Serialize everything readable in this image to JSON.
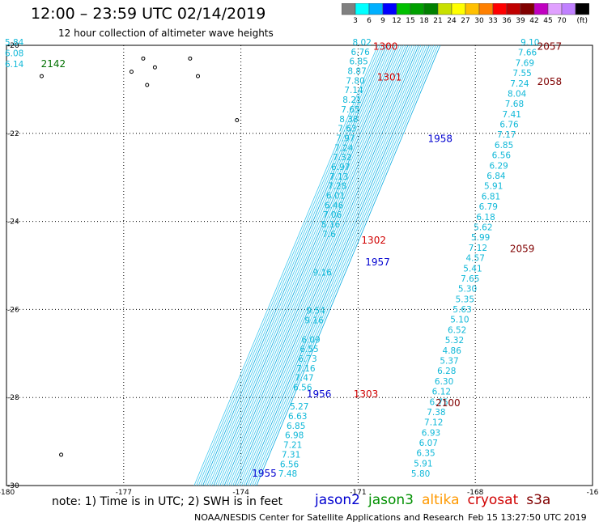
{
  "header": {
    "title": "12:00 – 23:59 UTC 02/14/2019",
    "subtitle": "12 hour collection of altimeter wave heights"
  },
  "color_scale": {
    "unit": "(ft)",
    "colors": [
      "#808080",
      "#00ffff",
      "#00b0ff",
      "#0000ff",
      "#00c000",
      "#00a000",
      "#008000",
      "#c8e000",
      "#ffff00",
      "#ffc000",
      "#ff8000",
      "#ff0000",
      "#c00000",
      "#800000",
      "#c000c0",
      "#e0a0ff",
      "#c080ff",
      "#000000"
    ],
    "labels": [
      "3",
      "6",
      "9",
      "12",
      "15",
      "18",
      "21",
      "24",
      "27",
      "30",
      "33",
      "36",
      "39",
      "42",
      "45",
      "70"
    ]
  },
  "footer": {
    "note": "note: 1) Time is in UTC; 2) SWH is in feet",
    "satellites": [
      {
        "name": "jason2",
        "color": "#0000d0"
      },
      {
        "name": "jason3",
        "color": "#009000"
      },
      {
        "name": "altika",
        "color": "#ff9900"
      },
      {
        "name": "cryosat",
        "color": "#d00000"
      },
      {
        "name": "s3a",
        "color": "#800000"
      }
    ],
    "credit": "NOAA/NESDIS Center for Satellite Applications and Research",
    "timestamp": "Feb 15 13:27:50 UTC 2019"
  },
  "chart_data": {
    "type": "scatter",
    "title": "12:00 – 23:59 UTC 02/14/2019",
    "subtitle": "12 hour collection of altimeter wave heights",
    "x_ticks": [
      "-180",
      "-177",
      "-174",
      "-171",
      "-168",
      "-16"
    ],
    "y_ticks": [
      "-20",
      "-22",
      "-24",
      "-26",
      "-28",
      "-30"
    ],
    "xlim": [
      -180,
      -165
    ],
    "ylim": [
      -30,
      -20
    ],
    "grid": true,
    "time_labels": [
      {
        "text": "1300",
        "lon": -170.3,
        "lat": -20.1,
        "color": "#d00000"
      },
      {
        "text": "1301",
        "lon": -170.2,
        "lat": -20.8,
        "color": "#d00000"
      },
      {
        "text": "1302",
        "lon": -170.6,
        "lat": -24.5,
        "color": "#d00000"
      },
      {
        "text": "1303",
        "lon": -170.8,
        "lat": -28.0,
        "color": "#d00000"
      },
      {
        "text": "2057",
        "lon": -166.1,
        "lat": -20.1,
        "color": "#800000"
      },
      {
        "text": "2058",
        "lon": -166.1,
        "lat": -20.9,
        "color": "#800000"
      },
      {
        "text": "2059",
        "lon": -166.8,
        "lat": -24.7,
        "color": "#800000"
      },
      {
        "text": "2100",
        "lon": -168.7,
        "lat": -28.2,
        "color": "#800000"
      },
      {
        "text": "2142",
        "lon": -178.8,
        "lat": -20.5,
        "color": "#007000"
      },
      {
        "text": "1958",
        "lon": -168.9,
        "lat": -22.2,
        "color": "#0000d0"
      },
      {
        "text": "1957",
        "lon": -170.5,
        "lat": -25.0,
        "color": "#0000d0"
      },
      {
        "text": "1956",
        "lon": -172.0,
        "lat": -28.0,
        "color": "#0000d0"
      },
      {
        "text": "1955",
        "lon": -173.4,
        "lat": -29.8,
        "color": "#0000d0"
      }
    ],
    "tracks": [
      {
        "name": "cryosat",
        "start": {
          "lon": -170.9,
          "lat": -20.0
        },
        "end": {
          "lon": -172.8,
          "lat": -29.8
        },
        "values": [
          "8.02",
          "6.76",
          "6.85",
          "8.87",
          "7.80",
          "7.14",
          "8.21",
          "7.65",
          "8.38",
          "7.63",
          "7.97",
          "7.24",
          "7.32",
          "6.97",
          "7.13",
          "7.28",
          "6.01",
          "6.46",
          "7.06",
          "8.16",
          "7.6",
          "",
          "",
          "",
          "9.16",
          "",
          "",
          "",
          "9.54",
          "9.16",
          "",
          "6.09",
          "6.55",
          "6.73",
          "7.16",
          "7.47",
          "6.56",
          "",
          "5.27",
          "6.63",
          "6.85",
          "6.98",
          "7.21",
          "7.31",
          "6.56",
          "7.48"
        ]
      },
      {
        "name": "s3a",
        "start": {
          "lon": -166.6,
          "lat": -20.0
        },
        "end": {
          "lon": -169.4,
          "lat": -29.8
        },
        "values": [
          "9.10",
          "7.66",
          "7.69",
          "7.55",
          "7.24",
          "8.04",
          "7.68",
          "7.41",
          "6.76",
          "7.17",
          "6.85",
          "6.56",
          "6.29",
          "6.84",
          "5.91",
          "6.81",
          "6.79",
          "6.18",
          "5.62",
          "5.99",
          "7.12",
          "4.57",
          "5.41",
          "7.65",
          "5.30",
          "5.35",
          "5.63",
          "5.10",
          "6.52",
          "5.32",
          "4.86",
          "5.37",
          "6.28",
          "6.30",
          "6.12",
          "6.75",
          "7.38",
          "7.12",
          "6.93",
          "6.07",
          "6.35",
          "5.91",
          "5.80"
        ]
      },
      {
        "name": "s3a",
        "start": {
          "lon": -179.8,
          "lat": -20.0
        },
        "end": {
          "lon": -179.8,
          "lat": -20.5
        },
        "values": [
          "5.84",
          "6.08",
          "6.14"
        ]
      }
    ]
  }
}
